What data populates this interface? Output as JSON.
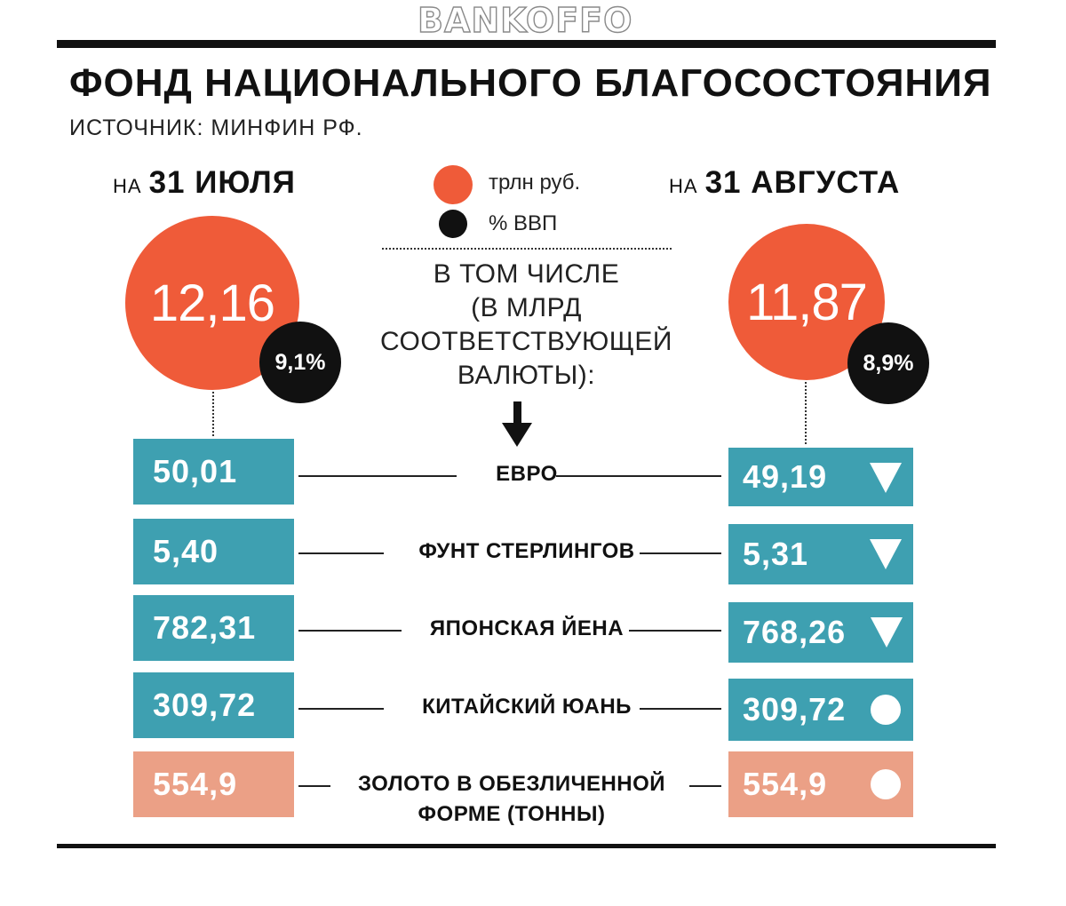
{
  "watermark": "BANKOFFO",
  "header": {
    "title": "ФОНД НАЦИОНАЛЬНОГО БЛАГОСОСТОЯНИЯ",
    "source": "ИСТОЧНИК: МИНФИН РФ."
  },
  "legend": {
    "items": [
      {
        "label": "трлн руб.",
        "color": "#ef5b39",
        "icon": "orange-dot-icon"
      },
      {
        "label": "% ВВП",
        "color": "#111111",
        "icon": "black-dot-icon"
      }
    ]
  },
  "dates": {
    "left": {
      "prefix": "НА",
      "date": "31 ИЮЛЯ"
    },
    "right": {
      "prefix": "НА",
      "date": "31 АВГУСТА"
    }
  },
  "note": {
    "lines": [
      "В ТОМ ЧИСЛЕ",
      "(В МЛРД",
      "СООТВЕТСТВУЮЩЕЙ",
      "ВАЛЮТЫ):"
    ]
  },
  "colors": {
    "accent_orange": "#ef5b39",
    "currency_box": "#3ea0b1",
    "gold_box": "#eba086",
    "text": "#111111"
  },
  "chart_data": {
    "type": "table",
    "title": "ФОНД НАЦИОНАЛЬНОГО БЛАГОСОСТОЯНИЯ",
    "subtitle": "ИСТОЧНИК: МИНФИН РФ.",
    "periods": [
      "31 ИЮЛЯ",
      "31 АВГУСТА"
    ],
    "totals": {
      "trln_rub": {
        "display": [
          "12,16",
          "11,87"
        ],
        "values": [
          12.16,
          11.87
        ]
      },
      "gdp_pct": {
        "display": [
          "9,1%",
          "8,9%"
        ],
        "values": [
          9.1,
          8.9
        ]
      }
    },
    "rows": [
      {
        "label_lines": [
          "ЕВРО"
        ],
        "left": "50,01",
        "right": "49,19",
        "values": [
          50.01,
          49.19
        ],
        "change": "down",
        "group": "currency"
      },
      {
        "label_lines": [
          "ФУНТ СТЕРЛИНГОВ"
        ],
        "left": "5,40",
        "right": "5,31",
        "values": [
          5.4,
          5.31
        ],
        "change": "down",
        "group": "currency"
      },
      {
        "label_lines": [
          "ЯПОНСКАЯ ЙЕНА"
        ],
        "left": "782,31",
        "right": "768,26",
        "values": [
          782.31,
          768.26
        ],
        "change": "down",
        "group": "currency"
      },
      {
        "label_lines": [
          "КИТАЙСКИЙ ЮАНЬ"
        ],
        "left": "309,72",
        "right": "309,72",
        "values": [
          309.72,
          309.72
        ],
        "change": "same",
        "group": "currency"
      },
      {
        "label_lines": [
          "ЗОЛОТО В ОБЕЗЛИЧЕННОЙ",
          "ФОРМЕ (ТОННЫ)"
        ],
        "left": "554,9",
        "right": "554,9",
        "values": [
          554.9,
          554.9
        ],
        "change": "same",
        "group": "gold"
      }
    ]
  }
}
